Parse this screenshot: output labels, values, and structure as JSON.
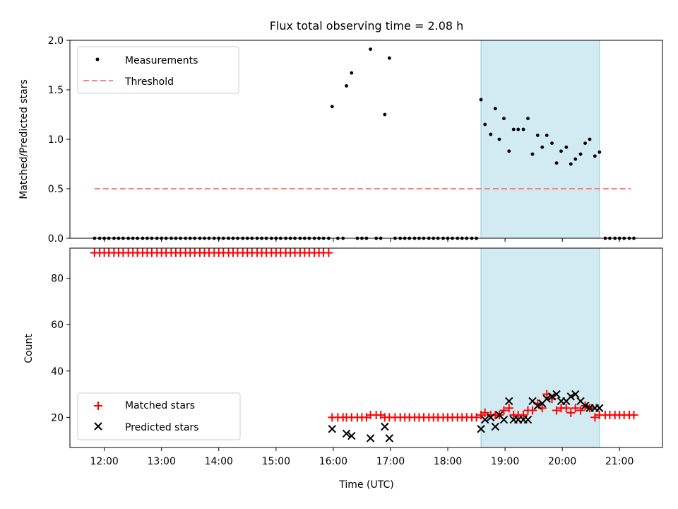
{
  "figure": {
    "title": "Flux total observing time = 2.08 h",
    "xlabel": "Time (UTC)",
    "x_ticks": [
      "12:00",
      "13:00",
      "14:00",
      "15:00",
      "16:00",
      "17:00",
      "18:00",
      "19:00",
      "20:00",
      "21:00"
    ],
    "x_tick_values": [
      12,
      13,
      14,
      15,
      16,
      17,
      18,
      19,
      20,
      21
    ],
    "xlim": [
      11.4,
      21.75
    ],
    "highlight_span": [
      18.58,
      20.65
    ],
    "highlight_color": "#add8e6"
  },
  "chart_data": [
    {
      "type": "scatter",
      "ylabel": "Matched/Predicted stars",
      "ylim": [
        0,
        2.0
      ],
      "y_ticks": [
        "0.0",
        "0.5",
        "1.0",
        "1.5",
        "2.0"
      ],
      "y_tick_values": [
        0,
        0.5,
        1.0,
        1.5,
        2.0
      ],
      "legend_position": "top-left",
      "series": [
        {
          "name": "Measurements",
          "color": "#000000",
          "points": [
            [
              11.83,
              0
            ],
            [
              11.92,
              0
            ],
            [
              12.0,
              0
            ],
            [
              12.08,
              0
            ],
            [
              12.17,
              0
            ],
            [
              12.25,
              0
            ],
            [
              12.33,
              0
            ],
            [
              12.42,
              0
            ],
            [
              12.5,
              0
            ],
            [
              12.58,
              0
            ],
            [
              12.67,
              0
            ],
            [
              12.75,
              0
            ],
            [
              12.83,
              0
            ],
            [
              12.92,
              0
            ],
            [
              13.0,
              0
            ],
            [
              13.08,
              0
            ],
            [
              13.17,
              0
            ],
            [
              13.25,
              0
            ],
            [
              13.33,
              0
            ],
            [
              13.42,
              0
            ],
            [
              13.5,
              0
            ],
            [
              13.58,
              0
            ],
            [
              13.67,
              0
            ],
            [
              13.75,
              0
            ],
            [
              13.83,
              0
            ],
            [
              13.92,
              0
            ],
            [
              14.0,
              0
            ],
            [
              14.08,
              0
            ],
            [
              14.17,
              0
            ],
            [
              14.25,
              0
            ],
            [
              14.33,
              0
            ],
            [
              14.42,
              0
            ],
            [
              14.5,
              0
            ],
            [
              14.58,
              0
            ],
            [
              14.67,
              0
            ],
            [
              14.75,
              0
            ],
            [
              14.83,
              0
            ],
            [
              14.92,
              0
            ],
            [
              15.0,
              0
            ],
            [
              15.08,
              0
            ],
            [
              15.17,
              0
            ],
            [
              15.25,
              0
            ],
            [
              15.33,
              0
            ],
            [
              15.42,
              0
            ],
            [
              15.5,
              0
            ],
            [
              15.58,
              0
            ],
            [
              15.67,
              0
            ],
            [
              15.75,
              0
            ],
            [
              15.83,
              0
            ],
            [
              15.92,
              0
            ],
            [
              15.98,
              1.33
            ],
            [
              16.08,
              0
            ],
            [
              16.17,
              0
            ],
            [
              16.23,
              1.54
            ],
            [
              16.32,
              1.67
            ],
            [
              16.42,
              0
            ],
            [
              16.5,
              0
            ],
            [
              16.58,
              0
            ],
            [
              16.65,
              1.91
            ],
            [
              16.75,
              0
            ],
            [
              16.83,
              0
            ],
            [
              16.9,
              1.25
            ],
            [
              16.98,
              1.82
            ],
            [
              17.08,
              0
            ],
            [
              17.17,
              0
            ],
            [
              17.25,
              0
            ],
            [
              17.33,
              0
            ],
            [
              17.42,
              0
            ],
            [
              17.5,
              0
            ],
            [
              17.58,
              0
            ],
            [
              17.67,
              0
            ],
            [
              17.75,
              0
            ],
            [
              17.83,
              0
            ],
            [
              17.92,
              0
            ],
            [
              18.0,
              0
            ],
            [
              18.08,
              0
            ],
            [
              18.17,
              0
            ],
            [
              18.25,
              0
            ],
            [
              18.33,
              0
            ],
            [
              18.42,
              0
            ],
            [
              18.5,
              0
            ],
            [
              18.58,
              1.4
            ],
            [
              18.65,
              1.15
            ],
            [
              18.75,
              1.05
            ],
            [
              18.83,
              1.31
            ],
            [
              18.9,
              1.0
            ],
            [
              18.98,
              1.21
            ],
            [
              19.07,
              0.88
            ],
            [
              19.15,
              1.1
            ],
            [
              19.23,
              1.1
            ],
            [
              19.32,
              1.1
            ],
            [
              19.4,
              1.21
            ],
            [
              19.48,
              0.85
            ],
            [
              19.57,
              1.04
            ],
            [
              19.65,
              0.92
            ],
            [
              19.73,
              1.04
            ],
            [
              19.82,
              0.96
            ],
            [
              19.9,
              0.76
            ],
            [
              19.98,
              0.88
            ],
            [
              20.07,
              0.92
            ],
            [
              20.15,
              0.75
            ],
            [
              20.23,
              0.8
            ],
            [
              20.32,
              0.85
            ],
            [
              20.4,
              0.96
            ],
            [
              20.48,
              1.0
            ],
            [
              20.57,
              0.83
            ],
            [
              20.65,
              0.87
            ],
            [
              20.75,
              0
            ],
            [
              20.83,
              0
            ],
            [
              20.92,
              0
            ],
            [
              21.0,
              0
            ],
            [
              21.08,
              0
            ],
            [
              21.17,
              0
            ],
            [
              21.25,
              0
            ]
          ]
        },
        {
          "name": "Threshold",
          "color": "#ff7f7f",
          "line_style": "dashed",
          "x": [
            11.83,
            21.2
          ],
          "y": [
            0.5,
            0.5
          ]
        }
      ]
    },
    {
      "type": "scatter",
      "ylabel": "Count",
      "ylim": [
        7,
        93
      ],
      "y_ticks": [
        "20",
        "40",
        "60",
        "80"
      ],
      "y_tick_values": [
        20,
        40,
        60,
        80
      ],
      "legend_position": "bottom-left",
      "series": [
        {
          "name": "Matched stars",
          "color": "#ff0000",
          "marker": "plus",
          "points": [
            [
              11.83,
              91
            ],
            [
              11.92,
              91
            ],
            [
              12.0,
              91
            ],
            [
              12.08,
              91
            ],
            [
              12.17,
              91
            ],
            [
              12.25,
              91
            ],
            [
              12.33,
              91
            ],
            [
              12.42,
              91
            ],
            [
              12.5,
              91
            ],
            [
              12.58,
              91
            ],
            [
              12.67,
              91
            ],
            [
              12.75,
              91
            ],
            [
              12.83,
              91
            ],
            [
              12.92,
              91
            ],
            [
              13.0,
              91
            ],
            [
              13.08,
              91
            ],
            [
              13.17,
              91
            ],
            [
              13.25,
              91
            ],
            [
              13.33,
              91
            ],
            [
              13.42,
              91
            ],
            [
              13.5,
              91
            ],
            [
              13.58,
              91
            ],
            [
              13.67,
              91
            ],
            [
              13.75,
              91
            ],
            [
              13.83,
              91
            ],
            [
              13.92,
              91
            ],
            [
              14.0,
              91
            ],
            [
              14.08,
              91
            ],
            [
              14.17,
              91
            ],
            [
              14.25,
              91
            ],
            [
              14.33,
              91
            ],
            [
              14.42,
              91
            ],
            [
              14.5,
              91
            ],
            [
              14.58,
              91
            ],
            [
              14.67,
              91
            ],
            [
              14.75,
              91
            ],
            [
              14.83,
              91
            ],
            [
              14.92,
              91
            ],
            [
              15.0,
              91
            ],
            [
              15.08,
              91
            ],
            [
              15.17,
              91
            ],
            [
              15.25,
              91
            ],
            [
              15.33,
              91
            ],
            [
              15.42,
              91
            ],
            [
              15.5,
              91
            ],
            [
              15.58,
              91
            ],
            [
              15.67,
              91
            ],
            [
              15.75,
              91
            ],
            [
              15.83,
              91
            ],
            [
              15.92,
              91
            ],
            [
              15.98,
              20
            ],
            [
              16.08,
              20
            ],
            [
              16.17,
              20
            ],
            [
              16.23,
              20
            ],
            [
              16.32,
              20
            ],
            [
              16.42,
              20
            ],
            [
              16.5,
              20
            ],
            [
              16.58,
              20
            ],
            [
              16.65,
              21
            ],
            [
              16.75,
              21
            ],
            [
              16.83,
              21
            ],
            [
              16.9,
              20
            ],
            [
              16.98,
              20
            ],
            [
              17.08,
              20
            ],
            [
              17.17,
              20
            ],
            [
              17.25,
              20
            ],
            [
              17.33,
              20
            ],
            [
              17.42,
              20
            ],
            [
              17.5,
              20
            ],
            [
              17.58,
              20
            ],
            [
              17.67,
              20
            ],
            [
              17.75,
              20
            ],
            [
              17.83,
              20
            ],
            [
              17.92,
              20
            ],
            [
              18.0,
              20
            ],
            [
              18.08,
              20
            ],
            [
              18.17,
              20
            ],
            [
              18.25,
              20
            ],
            [
              18.33,
              20
            ],
            [
              18.42,
              20
            ],
            [
              18.5,
              20
            ],
            [
              18.58,
              21
            ],
            [
              18.65,
              22
            ],
            [
              18.75,
              21
            ],
            [
              18.83,
              21
            ],
            [
              18.9,
              21
            ],
            [
              18.98,
              23
            ],
            [
              19.07,
              24
            ],
            [
              19.15,
              21
            ],
            [
              19.23,
              21
            ],
            [
              19.32,
              21
            ],
            [
              19.4,
              23
            ],
            [
              19.48,
              23
            ],
            [
              19.57,
              26
            ],
            [
              19.65,
              24
            ],
            [
              19.73,
              30
            ],
            [
              19.82,
              28
            ],
            [
              19.9,
              23
            ],
            [
              19.98,
              24
            ],
            [
              20.07,
              24
            ],
            [
              20.15,
              22
            ],
            [
              20.23,
              24
            ],
            [
              20.32,
              23
            ],
            [
              20.4,
              25
            ],
            [
              20.48,
              24
            ],
            [
              20.57,
              20
            ],
            [
              20.65,
              21
            ],
            [
              20.75,
              21
            ],
            [
              20.83,
              21
            ],
            [
              20.92,
              21
            ],
            [
              21.0,
              21
            ],
            [
              21.08,
              21
            ],
            [
              21.17,
              21
            ],
            [
              21.25,
              21
            ]
          ]
        },
        {
          "name": "Predicted stars",
          "color": "#000000",
          "marker": "x",
          "points": [
            [
              15.98,
              15
            ],
            [
              16.23,
              13
            ],
            [
              16.32,
              12
            ],
            [
              16.65,
              11
            ],
            [
              16.9,
              16
            ],
            [
              16.98,
              11
            ],
            [
              18.58,
              15
            ],
            [
              18.65,
              19
            ],
            [
              18.75,
              20
            ],
            [
              18.83,
              16
            ],
            [
              18.9,
              21
            ],
            [
              18.98,
              19
            ],
            [
              19.07,
              27
            ],
            [
              19.15,
              19
            ],
            [
              19.23,
              19
            ],
            [
              19.32,
              19
            ],
            [
              19.4,
              19
            ],
            [
              19.48,
              27
            ],
            [
              19.57,
              25
            ],
            [
              19.65,
              26
            ],
            [
              19.73,
              28
            ],
            [
              19.82,
              29
            ],
            [
              19.9,
              30
            ],
            [
              19.98,
              27
            ],
            [
              20.07,
              27
            ],
            [
              20.15,
              29
            ],
            [
              20.23,
              30
            ],
            [
              20.32,
              27
            ],
            [
              20.4,
              25
            ],
            [
              20.48,
              24
            ],
            [
              20.57,
              24
            ],
            [
              20.65,
              24
            ]
          ]
        }
      ]
    }
  ]
}
